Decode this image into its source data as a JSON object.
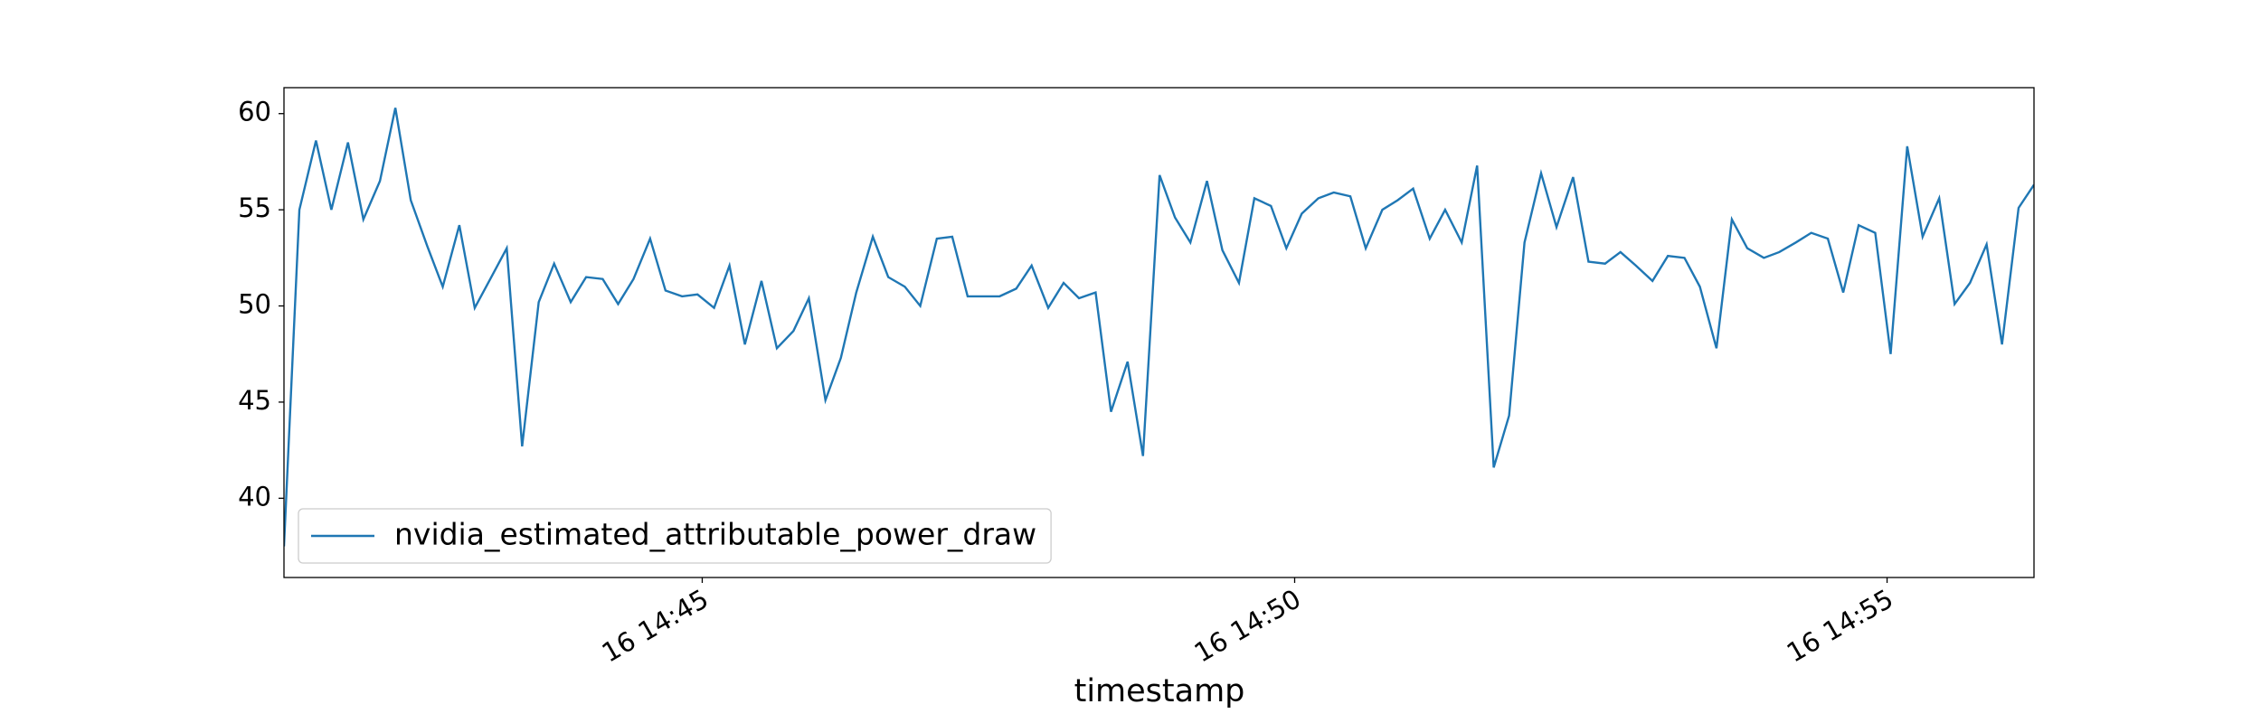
{
  "chart_data": {
    "type": "line",
    "xlabel": "timestamp",
    "xlim": [
      41.47,
      56.24
    ],
    "xticks": [
      {
        "value": 45,
        "label": "16 14:45"
      },
      {
        "value": 50,
        "label": "16 14:50"
      },
      {
        "value": 55,
        "label": "16 14:55"
      }
    ],
    "ylim": [
      35.88,
      61.35
    ],
    "yticks": [
      40,
      45,
      50,
      55,
      60
    ],
    "legend": "lower left",
    "x": [
      41.47,
      41.6,
      41.74,
      41.87,
      42.01,
      42.14,
      42.28,
      42.41,
      42.54,
      42.68,
      42.81,
      42.95,
      43.08,
      43.22,
      43.35,
      43.48,
      43.62,
      43.75,
      43.89,
      44.02,
      44.16,
      44.29,
      44.42,
      44.56,
      44.69,
      44.83,
      44.96,
      45.1,
      45.23,
      45.36,
      45.5,
      45.63,
      45.77,
      45.9,
      46.04,
      46.17,
      46.3,
      46.44,
      46.57,
      46.71,
      46.84,
      46.98,
      47.11,
      47.24,
      47.38,
      47.51,
      47.65,
      47.78,
      47.92,
      48.05,
      48.18,
      48.32,
      48.45,
      48.59,
      48.72,
      48.86,
      48.99,
      49.12,
      49.26,
      49.39,
      49.53,
      49.66,
      49.8,
      49.93,
      50.06,
      50.2,
      50.33,
      50.47,
      50.6,
      50.74,
      50.87,
      51.0,
      51.14,
      51.27,
      51.41,
      51.54,
      51.68,
      51.81,
      51.94,
      52.08,
      52.21,
      52.35,
      52.48,
      52.62,
      52.75,
      52.88,
      53.02,
      53.15,
      53.29,
      53.42,
      53.56,
      53.69,
      53.82,
      53.96,
      54.09,
      54.23,
      54.36,
      54.5,
      54.63,
      54.76,
      54.9,
      55.03,
      55.17,
      55.3,
      55.44,
      55.57,
      55.7,
      55.84,
      55.97,
      56.11,
      56.24
    ],
    "series": [
      {
        "name": "nvidia_estimated_attributable_power_draw",
        "color": "#1f77b4",
        "values": [
          37.5,
          55,
          58.6,
          55,
          58.5,
          54.5,
          56.5,
          60.3,
          55.5,
          53.1,
          51,
          54.2,
          49.9,
          51.5,
          53,
          42.7,
          50.2,
          52.2,
          50.2,
          51.5,
          51.4,
          50.1,
          51.4,
          53.5,
          50.8,
          50.5,
          50.6,
          49.9,
          52.1,
          48,
          51.3,
          47.8,
          48.7,
          50.4,
          45.1,
          47.3,
          50.7,
          53.6,
          51.5,
          51,
          50,
          53.5,
          53.6,
          50.5,
          50.5,
          50.5,
          50.9,
          52.1,
          49.9,
          51.2,
          50.4,
          50.7,
          44.5,
          47.1,
          42.2,
          56.8,
          54.6,
          53.3,
          56.5,
          52.9,
          51.2,
          55.6,
          55.2,
          53,
          54.8,
          55.6,
          55.9,
          55.7,
          53,
          55,
          55.5,
          56.1,
          53.5,
          55,
          53.3,
          57.3,
          41.6,
          44.3,
          53.3,
          56.9,
          54.1,
          56.7,
          52.3,
          52.2,
          52.8,
          52.1,
          51.3,
          52.6,
          52.5,
          51,
          47.8,
          54.5,
          53,
          52.5,
          52.8,
          53.3,
          53.8,
          53.5,
          50.7,
          54.2,
          53.8,
          47.5,
          58.3,
          53.6,
          55.6,
          50.1,
          51.2,
          53.2,
          48,
          55.1,
          56.3
        ]
      }
    ]
  }
}
